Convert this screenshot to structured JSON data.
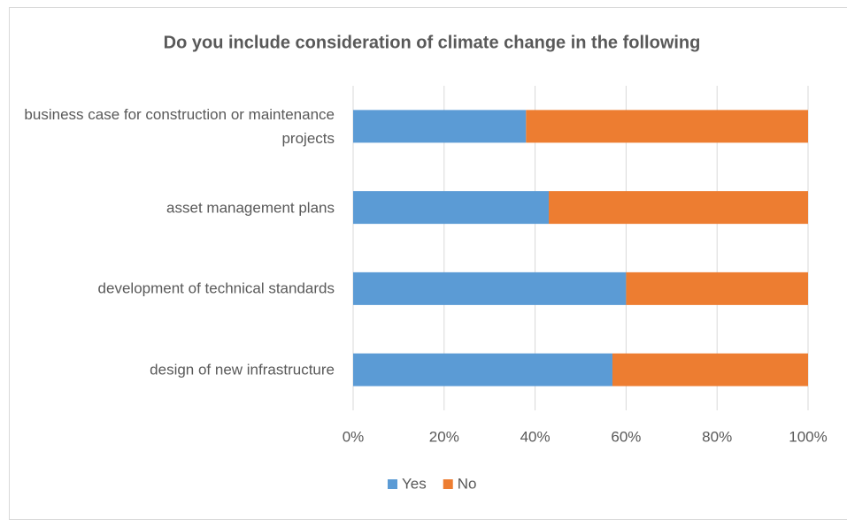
{
  "chart_data": {
    "type": "stacked_barh",
    "title": "Do you include consideration of climate change in the following",
    "categories": [
      "business case for construction or maintenance projects",
      "asset management plans",
      "development of technical standards",
      "design of new infrastructure"
    ],
    "series": [
      {
        "name": "Yes",
        "color": "#5b9bd5",
        "values": [
          38,
          43,
          60,
          57
        ]
      },
      {
        "name": "No",
        "color": "#ed7d31",
        "values": [
          62,
          57,
          40,
          43
        ]
      }
    ],
    "xlim": [
      0,
      100
    ],
    "xticks": [
      {
        "value": 0,
        "label": "0%"
      },
      {
        "value": 20,
        "label": "20%"
      },
      {
        "value": 40,
        "label": "40%"
      },
      {
        "value": 60,
        "label": "60%"
      },
      {
        "value": 80,
        "label": "80%"
      },
      {
        "value": 100,
        "label": "100%"
      }
    ],
    "grid": true,
    "legend": "bottom"
  }
}
